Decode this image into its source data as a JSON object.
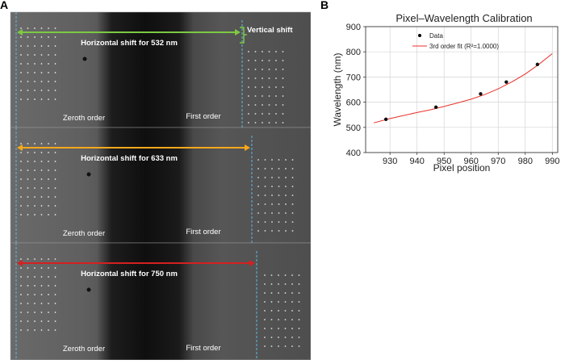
{
  "panel_a": {
    "label": "A",
    "vertical_shift_label": "Vertical shift",
    "subpanels": [
      {
        "shift_label": "Horizontal shift for 532 nm",
        "arrow_color": "#7dc943",
        "zeroth_label": "Zeroth order",
        "first_label": "First order"
      },
      {
        "shift_label": "Horizontal shift for 633 nm",
        "arrow_color": "#f5a81c",
        "zeroth_label": "Zeroth order",
        "first_label": "First order"
      },
      {
        "shift_label": "Horizontal shift for 750 nm",
        "arrow_color": "#d42020",
        "zeroth_label": "Zeroth order",
        "first_label": "First order"
      }
    ],
    "guide_line_color": "#5bb8e8"
  },
  "panel_b": {
    "label": "B"
  },
  "chart_data": {
    "type": "scatter",
    "title": "Pixel–Wavelength Calibration",
    "xlabel": "Pixel position",
    "ylabel": "Wavelength (nm)",
    "xlim": [
      921,
      992
    ],
    "ylim": [
      400,
      900
    ],
    "xticks": [
      930,
      940,
      950,
      960,
      970,
      980,
      990
    ],
    "yticks": [
      400,
      500,
      600,
      700,
      800,
      900
    ],
    "grid": true,
    "legend_position": "top-right",
    "series": [
      {
        "name": "Data",
        "kind": "points",
        "color": "#000000",
        "x": [
          928.5,
          947,
          963.5,
          973,
          984.5
        ],
        "y": [
          532,
          580,
          633,
          680,
          750
        ]
      },
      {
        "name": "3rd order fit (R²=1.0000)",
        "kind": "line",
        "color": "#e8312a",
        "x": [
          924,
          930,
          935,
          940,
          945,
          950,
          955,
          960,
          965,
          970,
          975,
          980,
          985,
          990
        ],
        "y": [
          518,
          535,
          547,
          559,
          570,
          583,
          597,
          612,
          630,
          653,
          680,
          712,
          750,
          793
        ]
      }
    ]
  }
}
